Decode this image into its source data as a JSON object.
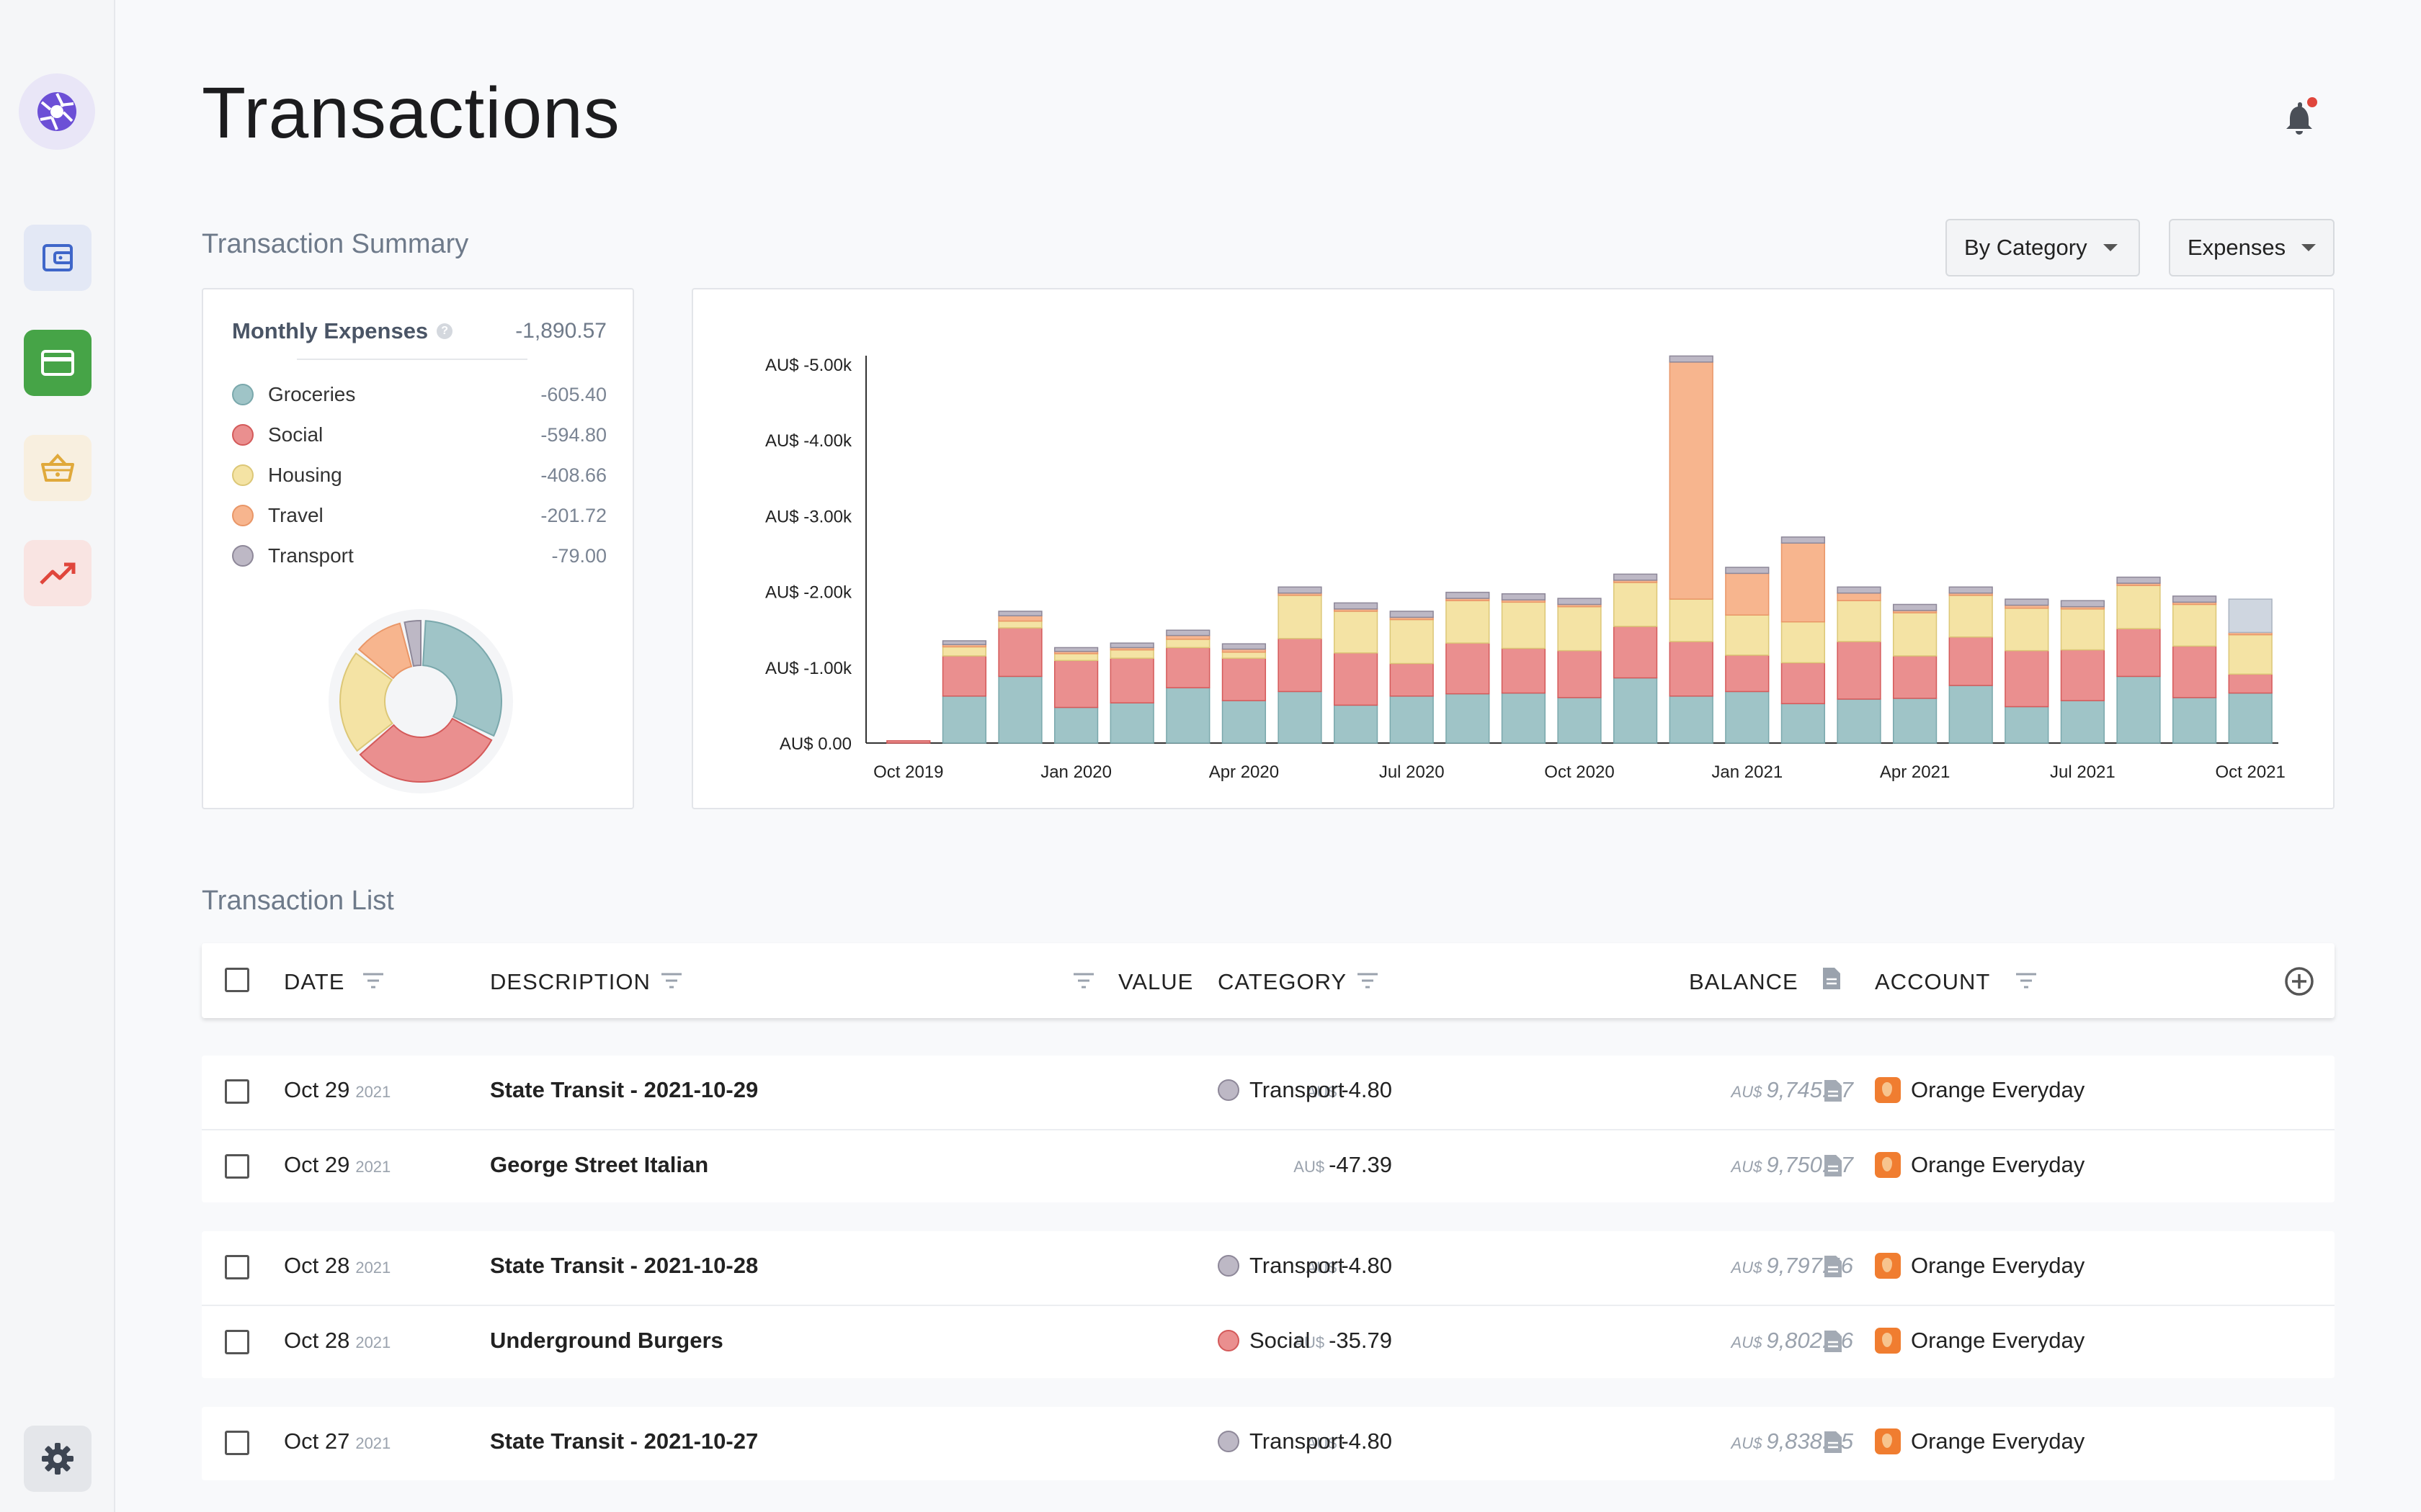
{
  "page": {
    "title": "Transactions"
  },
  "summary": {
    "section_title": "Transaction Summary",
    "group_by": "By Category",
    "type": "Expenses",
    "monthly_label": "Monthly Expenses",
    "monthly_total": "-1,890.57",
    "legend": [
      {
        "name": "Groceries",
        "amount": "-605.40",
        "color": "#9fc4c7",
        "border": "#7aa8ac"
      },
      {
        "name": "Social",
        "amount": "-594.80",
        "color": "#ea8f8f",
        "border": "#d45a5a"
      },
      {
        "name": "Housing",
        "amount": "-408.66",
        "color": "#f4e3a4",
        "border": "#dcc777"
      },
      {
        "name": "Travel",
        "amount": "-201.72",
        "color": "#f7b58e",
        "border": "#e99667"
      },
      {
        "name": "Transport",
        "amount": "-79.00",
        "color": "#bdb8c5",
        "border": "#8e8899"
      }
    ]
  },
  "chart_data": {
    "type": "bar",
    "stacked": true,
    "ylim": [
      0,
      -5000
    ],
    "y_ticks": [
      "AU$ 0.00",
      "AU$ -1.00k",
      "AU$ -2.00k",
      "AU$ -3.00k",
      "AU$ -4.00k",
      "AU$ -5.00k"
    ],
    "x_ticks": [
      {
        "label": "Oct 2019",
        "index": 0
      },
      {
        "label": "Jan 2020",
        "index": 3
      },
      {
        "label": "Apr 2020",
        "index": 6
      },
      {
        "label": "Jul 2020",
        "index": 9
      },
      {
        "label": "Oct 2020",
        "index": 12
      },
      {
        "label": "Jan 2021",
        "index": 15
      },
      {
        "label": "Apr 2021",
        "index": 18
      },
      {
        "label": "Jul 2021",
        "index": 21
      },
      {
        "label": "Oct 2021",
        "index": 24
      }
    ],
    "categories": [
      "Oct 2019",
      "Nov 2019",
      "Dec 2019",
      "Jan 2020",
      "Feb 2020",
      "Mar 2020",
      "Apr 2020",
      "May 2020",
      "Jun 2020",
      "Jul 2020",
      "Aug 2020",
      "Sep 2020",
      "Oct 2020",
      "Nov 2020",
      "Dec 2020",
      "Jan 2021",
      "Feb 2021",
      "Mar 2021",
      "Apr 2021",
      "May 2021",
      "Jun 2021",
      "Jul 2021",
      "Aug 2021",
      "Sep 2021",
      "Oct 2021"
    ],
    "series": [
      {
        "name": "Groceries",
        "values": [
          0,
          -620,
          -880,
          -470,
          -530,
          -730,
          -560,
          -680,
          -500,
          -620,
          -650,
          -660,
          -600,
          -860,
          -620,
          -680,
          -520,
          -580,
          -590,
          -760,
          -480,
          -560,
          -880,
          -600,
          -660
        ]
      },
      {
        "name": "Social",
        "values": [
          -30,
          -530,
          -640,
          -620,
          -590,
          -530,
          -560,
          -700,
          -690,
          -430,
          -670,
          -590,
          -620,
          -680,
          -720,
          -480,
          -540,
          -760,
          -560,
          -640,
          -740,
          -670,
          -630,
          -680,
          -250
        ]
      },
      {
        "name": "Housing",
        "values": [
          0,
          -120,
          -90,
          -90,
          -110,
          -110,
          -80,
          -570,
          -550,
          -580,
          -560,
          -610,
          -580,
          -580,
          -560,
          -530,
          -540,
          -540,
          -570,
          -550,
          -560,
          -540,
          -570,
          -550,
          -520
        ]
      },
      {
        "name": "Travel",
        "values": [
          0,
          -30,
          -70,
          -30,
          -30,
          -50,
          -40,
          -30,
          -30,
          -30,
          -30,
          -30,
          -30,
          -30,
          -3130,
          -550,
          -1040,
          -100,
          -30,
          -30,
          -40,
          -30,
          -30,
          -30,
          -30
        ]
      },
      {
        "name": "Transport",
        "values": [
          0,
          -50,
          -60,
          -50,
          -60,
          -70,
          -70,
          -80,
          -80,
          -80,
          -80,
          -80,
          -80,
          -80,
          -80,
          -80,
          -80,
          -80,
          -80,
          -80,
          -80,
          -80,
          -80,
          -80,
          -440
        ]
      }
    ]
  },
  "table": {
    "section_title": "Transaction List",
    "headers": {
      "date": "DATE",
      "description": "DESCRIPTION",
      "value": "VALUE",
      "category": "CATEGORY",
      "balance": "BALANCE",
      "account": "ACCOUNT"
    },
    "groups": [
      {
        "rows": [
          {
            "date": "Oct 29",
            "year": "2021",
            "description": "State Transit - 2021-10-29",
            "currency": "AU$",
            "value": "-4.80",
            "category": "Transport",
            "balance_currency": "AU$",
            "balance": "9,745.27",
            "account": "Orange Everyday"
          },
          {
            "date": "Oct 29",
            "year": "2021",
            "description": "George Street Italian",
            "currency": "AU$",
            "value": "-47.39",
            "category": "",
            "balance_currency": "AU$",
            "balance": "9,750.07",
            "account": "Orange Everyday"
          }
        ]
      },
      {
        "rows": [
          {
            "date": "Oct 28",
            "year": "2021",
            "description": "State Transit - 2021-10-28",
            "currency": "AU$",
            "value": "-4.80",
            "category": "Transport",
            "balance_currency": "AU$",
            "balance": "9,797.46",
            "account": "Orange Everyday"
          },
          {
            "date": "Oct 28",
            "year": "2021",
            "description": "Underground Burgers",
            "currency": "AU$",
            "value": "-35.79",
            "category": "Social",
            "balance_currency": "AU$",
            "balance": "9,802.26",
            "account": "Orange Everyday"
          }
        ]
      },
      {
        "rows": [
          {
            "date": "Oct 27",
            "year": "2021",
            "description": "State Transit - 2021-10-27",
            "currency": "AU$",
            "value": "-4.80",
            "category": "Transport",
            "balance_currency": "AU$",
            "balance": "9,838.05",
            "account": "Orange Everyday"
          }
        ]
      }
    ]
  }
}
